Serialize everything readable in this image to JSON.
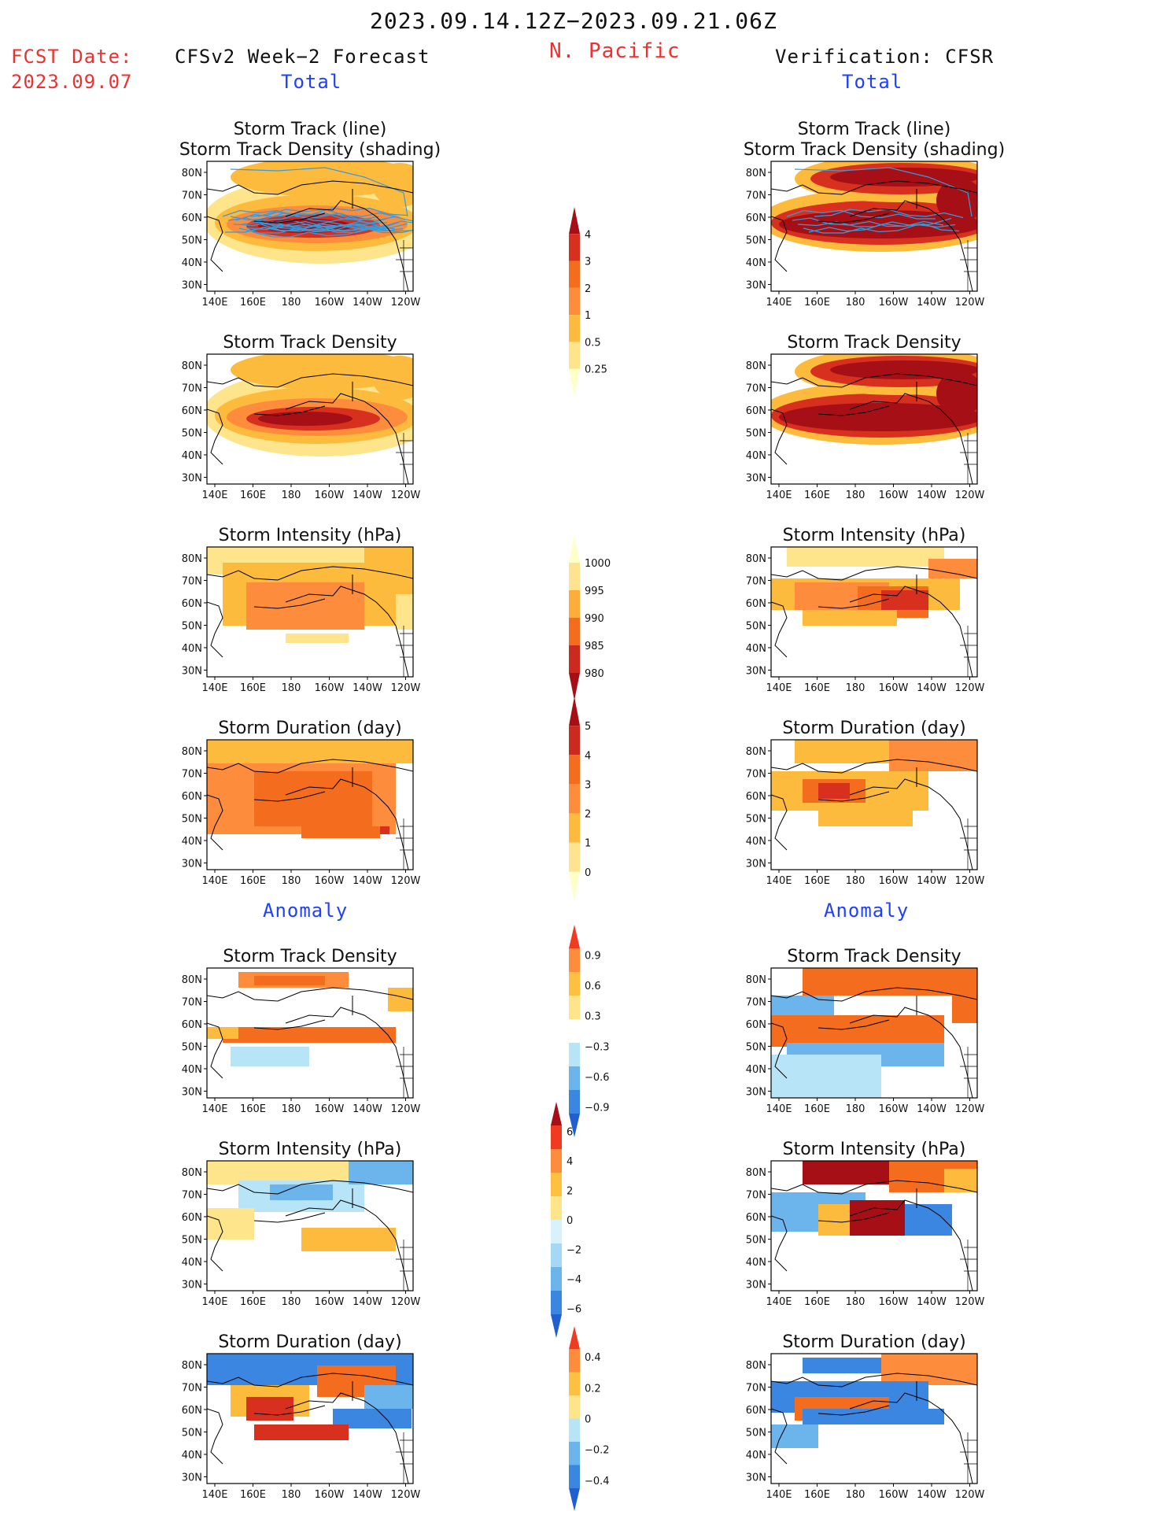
{
  "header": {
    "date_range": "2023.09.14.12Z−2023.09.21.06Z",
    "fcst_label": "FCST Date:",
    "fcst_date": "2023.09.07",
    "region": "N. Pacific",
    "left_title": "CFSv2 Week−2 Forecast",
    "right_title": "Verification: CFSR",
    "total_label": "Total",
    "anomaly_label": "Anomaly"
  },
  "axes": {
    "lon_ticks": [
      "140E",
      "160E",
      "180",
      "160W",
      "140W",
      "120W"
    ],
    "lat_ticks": [
      "80N",
      "70N",
      "60N",
      "50N",
      "40N",
      "30N"
    ]
  },
  "panels": {
    "left": [
      {
        "title": [
          "Storm Track (line)",
          "Storm Track Density (shading)"
        ]
      },
      {
        "title": [
          "Storm Track Density"
        ]
      },
      {
        "title": [
          "Storm Intensity (hPa)"
        ]
      },
      {
        "title": [
          "Storm Duration (day)"
        ]
      },
      {
        "title": [
          "Storm Track Density"
        ]
      },
      {
        "title": [
          "Storm Intensity (hPa)"
        ]
      },
      {
        "title": [
          "Storm Duration (day)"
        ]
      }
    ],
    "right": [
      {
        "title": [
          "Storm Track (line)",
          "Storm Track Density (shading)"
        ]
      },
      {
        "title": [
          "Storm Track Density"
        ]
      },
      {
        "title": [
          "Storm Intensity (hPa)"
        ]
      },
      {
        "title": [
          "Storm Duration (day)"
        ]
      },
      {
        "title": [
          "Storm Track Density"
        ]
      },
      {
        "title": [
          "Storm Intensity (hPa)"
        ]
      },
      {
        "title": [
          "Storm Duration (day)"
        ]
      }
    ]
  },
  "colorbars": [
    {
      "name": "density",
      "labels": [
        "4",
        "3",
        "2",
        "1",
        "0.5",
        "0.25"
      ],
      "colors": [
        "#a50f15",
        "#d7301f",
        "#f46d1e",
        "#fd8d3c",
        "#fdbb3e",
        "#fee48a",
        "#ffffc8"
      ]
    },
    {
      "name": "intensity",
      "labels": [
        "1000",
        "995",
        "990",
        "985",
        "980"
      ],
      "colors": [
        "#ffffc8",
        "#fee391",
        "#fdae3a",
        "#f46d1e",
        "#cc2a1e",
        "#a50f15"
      ]
    },
    {
      "name": "duration",
      "labels": [
        "5",
        "4",
        "3",
        "2",
        "1",
        "0"
      ],
      "colors": [
        "#a50f15",
        "#cc2a1e",
        "#f46d1e",
        "#fd8d3c",
        "#fdbb3e",
        "#fee391",
        "#ffffc8"
      ]
    },
    {
      "name": "density_anom",
      "labels": [
        "0.9",
        "0.6",
        "0.3",
        "−0.3",
        "−0.6",
        "−0.9"
      ],
      "colors": [
        "#f03b20",
        "#fd8d3c",
        "#fdc040",
        "#fee58a",
        "#ffffff",
        "#b7e4f7",
        "#6cb4ec",
        "#3a86e0",
        "#1f5fd0"
      ]
    },
    {
      "name": "intensity_anom",
      "labels": [
        "6",
        "4",
        "2",
        "0",
        "−2",
        "−4",
        "−6"
      ],
      "colors": [
        "#a50f15",
        "#f03b20",
        "#fd8d3c",
        "#fdc040",
        "#fee58a",
        "#d8f1fb",
        "#a6d8f5",
        "#6cb4ec",
        "#3a86e0",
        "#1f5fd0"
      ]
    },
    {
      "name": "duration_anom",
      "labels": [
        "0.4",
        "0.2",
        "0",
        "−0.2",
        "−0.4"
      ],
      "colors": [
        "#f03b20",
        "#fd8d3c",
        "#fdc040",
        "#fee58a",
        "#b7e4f7",
        "#6cb4ec",
        "#3a86e0",
        "#1f5fd0"
      ]
    }
  ],
  "colors": {
    "header_red": "#f03030",
    "header_blue": "#2040ff",
    "track_line": "#3a9ad9"
  }
}
